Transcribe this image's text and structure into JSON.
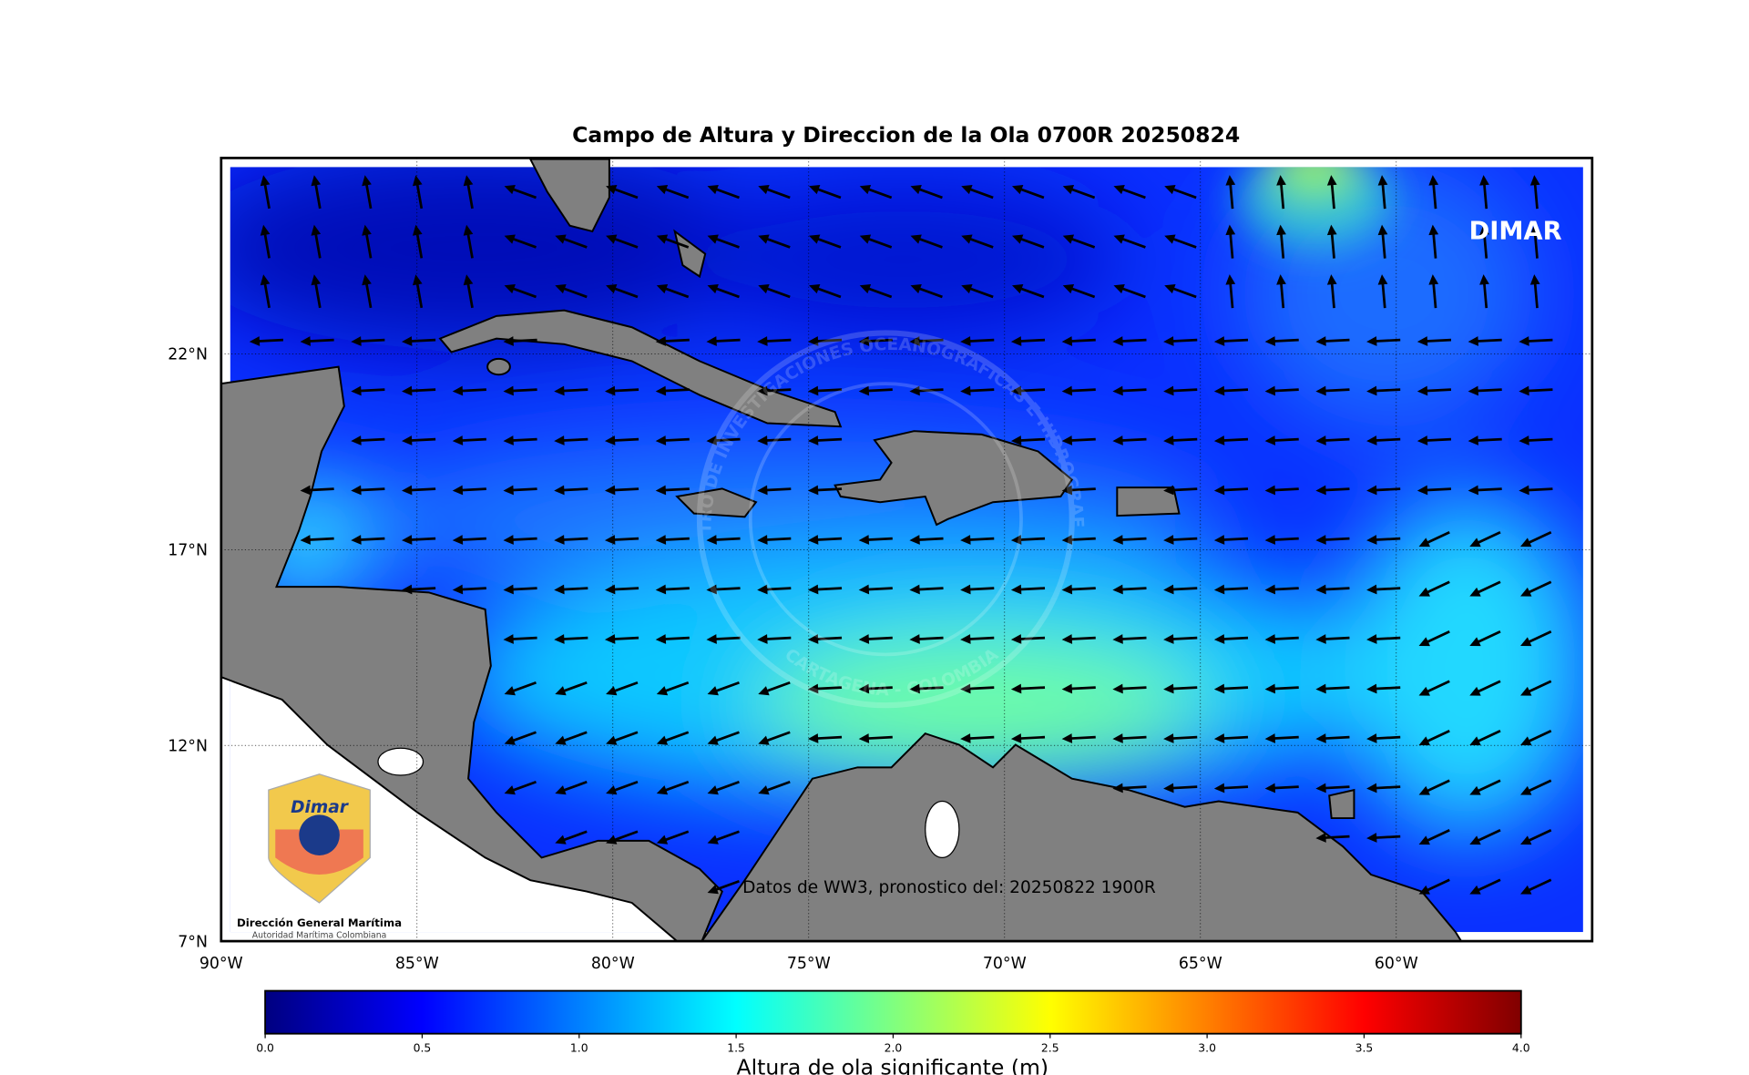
{
  "title": "Campo de Altura y Direccion de la Ola 0700R 20250824",
  "map": {
    "lonlim": [
      -90,
      -55
    ],
    "latlim": [
      7,
      27
    ],
    "lon_ticks": [
      {
        "value": -90,
        "label": "90°W"
      },
      {
        "value": -85,
        "label": "85°W"
      },
      {
        "value": -80,
        "label": "80°W"
      },
      {
        "value": -75,
        "label": "75°W"
      },
      {
        "value": -70,
        "label": "70°W"
      },
      {
        "value": -65,
        "label": "65°W"
      },
      {
        "value": -60,
        "label": "60°W"
      }
    ],
    "lat_ticks": [
      {
        "value": 7,
        "label": "7°N"
      },
      {
        "value": 12,
        "label": "12°N"
      },
      {
        "value": 17,
        "label": "17°N"
      },
      {
        "value": 22,
        "label": "22°N"
      }
    ],
    "brand": "DIMAR",
    "annotation": "Datos de WW3, pronostico del: 20250822 1900R",
    "watermark": {
      "top": "CENTRO DE INVESTIGACIONES OCEANOGRAFICAS E HIDROGRAFICAS",
      "bottom": "CARTAGENA - COLOMBIA"
    }
  },
  "logo": {
    "mark": "Dimar",
    "org": "Dirección General Marítima",
    "tagline": "Autoridad Marítima Colombiana"
  },
  "colorbar": {
    "lim": [
      0,
      4
    ],
    "ticks": [
      {
        "value": 0,
        "label": "0.0"
      },
      {
        "value": 0.5,
        "label": "0.5"
      },
      {
        "value": 1,
        "label": "1.0"
      },
      {
        "value": 1.5,
        "label": "1.5"
      },
      {
        "value": 2,
        "label": "2.0"
      },
      {
        "value": 2.5,
        "label": "2.5"
      },
      {
        "value": 3,
        "label": "3.0"
      },
      {
        "value": 3.5,
        "label": "3.5"
      },
      {
        "value": 4,
        "label": "4.0"
      }
    ],
    "label": "Altura de ola significante (m)"
  }
}
